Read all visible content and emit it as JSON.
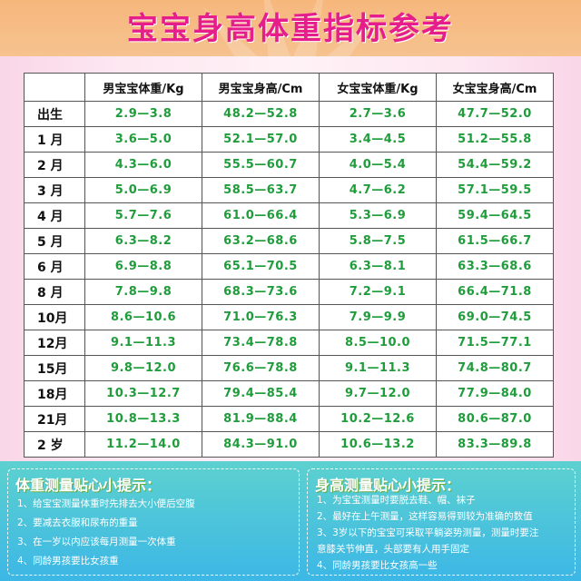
{
  "title": "宝宝身高体重指标参考",
  "table": {
    "columns": [
      "男宝宝体重/Kg",
      "男宝宝身高/Cm",
      "女宝宝体重/Kg",
      "女宝宝身高/Cm"
    ],
    "rows": [
      {
        "age": "出生",
        "values": [
          "2.9—3.8",
          "48.2—52.8",
          "2.7—3.6",
          "47.7—52.0"
        ]
      },
      {
        "age": "1 月",
        "values": [
          "3.6—5.0",
          "52.1—57.0",
          "3.4—4.5",
          "51.2—55.8"
        ]
      },
      {
        "age": "2 月",
        "values": [
          "4.3—6.0",
          "55.5—60.7",
          "4.0—5.4",
          "54.4—59.2"
        ]
      },
      {
        "age": "3 月",
        "values": [
          "5.0—6.9",
          "58.5—63.7",
          "4.7—6.2",
          "57.1—59.5"
        ]
      },
      {
        "age": "4 月",
        "values": [
          "5.7—7.6",
          "61.0—66.4",
          "5.3—6.9",
          "59.4—64.5"
        ]
      },
      {
        "age": "5 月",
        "values": [
          "6.3—8.2",
          "63.2—68.6",
          "5.8—7.5",
          "61.5—66.7"
        ]
      },
      {
        "age": "6 月",
        "values": [
          "6.9—8.8",
          "65.1—70.5",
          "6.3—8.1",
          "63.3—68.6"
        ]
      },
      {
        "age": "8 月",
        "values": [
          "7.8—9.8",
          "68.3—73.6",
          "7.2—9.1",
          "66.4—71.8"
        ]
      },
      {
        "age": "10月",
        "values": [
          "8.6—10.6",
          "71.0—76.3",
          "7.9—9.9",
          "69.0—74.5"
        ]
      },
      {
        "age": "12月",
        "values": [
          "9.1—11.3",
          "73.4—78.8",
          "8.5—10.0",
          "71.5—77.1"
        ]
      },
      {
        "age": "15月",
        "values": [
          "9.8—12.0",
          "76.6—78.8",
          "9.1—11.3",
          "74.8—80.7"
        ]
      },
      {
        "age": "18月",
        "values": [
          "10.3—12.7",
          "79.4—85.4",
          "9.7—12.0",
          "77.9—84.0"
        ]
      },
      {
        "age": "21月",
        "values": [
          "10.8—13.3",
          "81.9—88.4",
          "10.2—12.6",
          "80.6—87.0"
        ]
      },
      {
        "age": "2 岁",
        "values": [
          "11.2—14.0",
          "84.3—91.0",
          "10.6—13.2",
          "83.3—89.8"
        ]
      }
    ]
  },
  "weight_tips": {
    "title": "体重测量贴心小提示：",
    "items": [
      "1、给宝宝测量体重时先排去大小便后空腹",
      "2、要减去衣服和尿布的重量",
      "3、在一岁以内应该每月测量一次体重",
      "4、同龄男孩要比女孩重"
    ]
  },
  "height_tips": {
    "title": "身高测量贴心小提示：",
    "items": [
      "1、为宝宝测量时要脱去鞋、帽、袜子",
      "2、最好在上午测量，这样容易得到较为准确的数值",
      "3、3岁以下的宝宝可采取平躺姿势测量，测量时要注",
      "意膝关节伸直，头部要有人用手固定",
      "4、同龄男孩要比女孩高一些"
    ]
  },
  "colors": {
    "title": "#e61e8c",
    "value_text": "#1f9d3b",
    "header_bg": "#f6b77c",
    "footer_bg": "#4cc3dc"
  }
}
